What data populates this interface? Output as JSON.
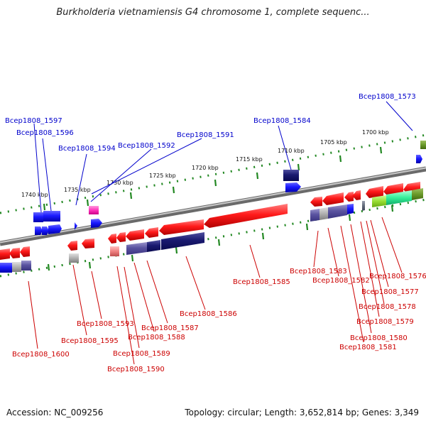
{
  "title": "Burkholderia vietnamiensis G4 chromosome 1, complete sequenc...",
  "footer": {
    "accession": "Accession: NC_009256",
    "summary": "Topology: circular; Length: 3,652,814 bp; Genes: 3,349"
  },
  "colors": {
    "forward_label": "#0000cc",
    "reverse_label": "#cc0000",
    "backbone": "#808080",
    "tick": "#228822"
  },
  "kbp_labels": [
    "1740 kbp",
    "1735 kbp",
    "1730 kbp",
    "1725 kbp",
    "1720 kbp",
    "1715 kbp",
    "1710 kbp",
    "1705 kbp",
    "1700 kbp"
  ],
  "forward_gene_labels": [
    "Bcep1808_1597",
    "Bcep1808_1596",
    "Bcep1808_1594",
    "Bcep1808_1592",
    "Bcep1808_1591",
    "Bcep1808_1584",
    "Bcep1808_1573"
  ],
  "reverse_gene_labels": [
    "Bcep1808_1600",
    "Bcep1808_1595",
    "Bcep1808_1593",
    "Bcep1808_1590",
    "Bcep1808_1589",
    "Bcep1808_1588",
    "Bcep1808_1587",
    "Bcep1808_1586",
    "Bcep1808_1585",
    "Bcep1808_1583",
    "Bcep1808_1582",
    "Bcep1808_1581",
    "Bcep1808_1580",
    "Bcep1808_1579",
    "Bcep1808_1578",
    "Bcep1808_1577",
    "Bcep1808_1576"
  ]
}
